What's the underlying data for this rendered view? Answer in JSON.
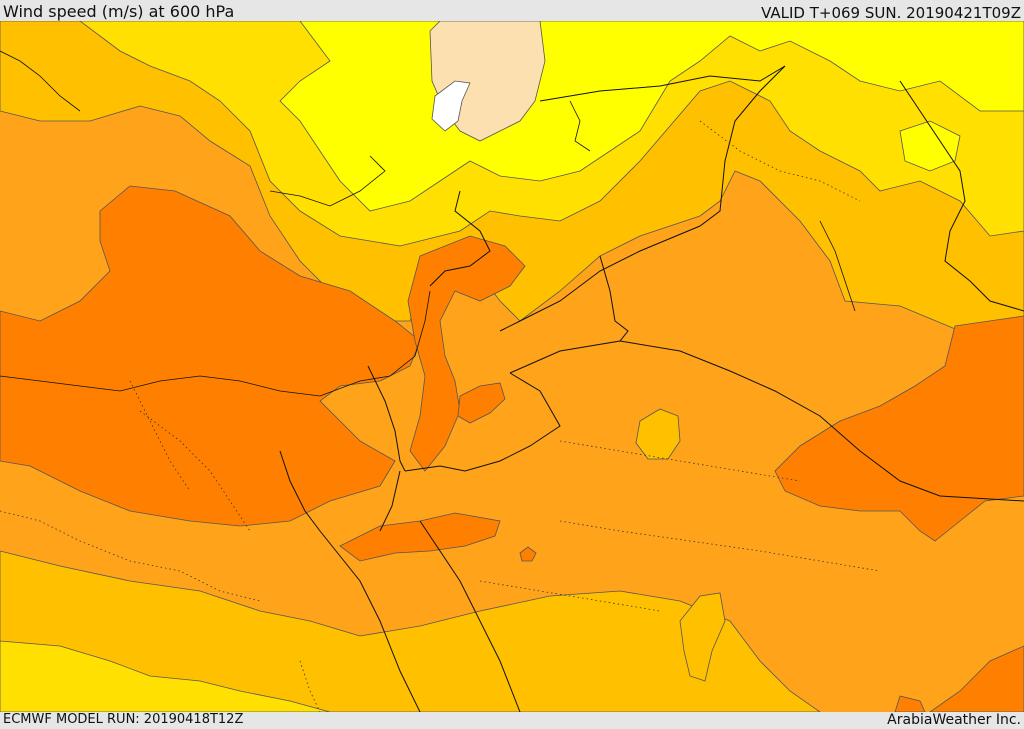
{
  "header": {
    "title": "Wind speed (m/s) at 600 hPa",
    "valid": "VALID T+069 SUN. 20190421T09Z"
  },
  "footer": {
    "model_run": "ECMWF MODEL RUN: 20190418T12Z",
    "credit": "ArabiaWeather Inc."
  },
  "map": {
    "field": "wind-speed-600hPa",
    "colors": {
      "lightest": "#fde0b0",
      "white": "#ffffff",
      "yellow": "#ffff00",
      "gold": "#ffe000",
      "light-orange": "#ffc000",
      "orange": "#ffa31a",
      "dark-orange": "#ff8000",
      "contour": "#555555",
      "border": "#111111"
    }
  }
}
